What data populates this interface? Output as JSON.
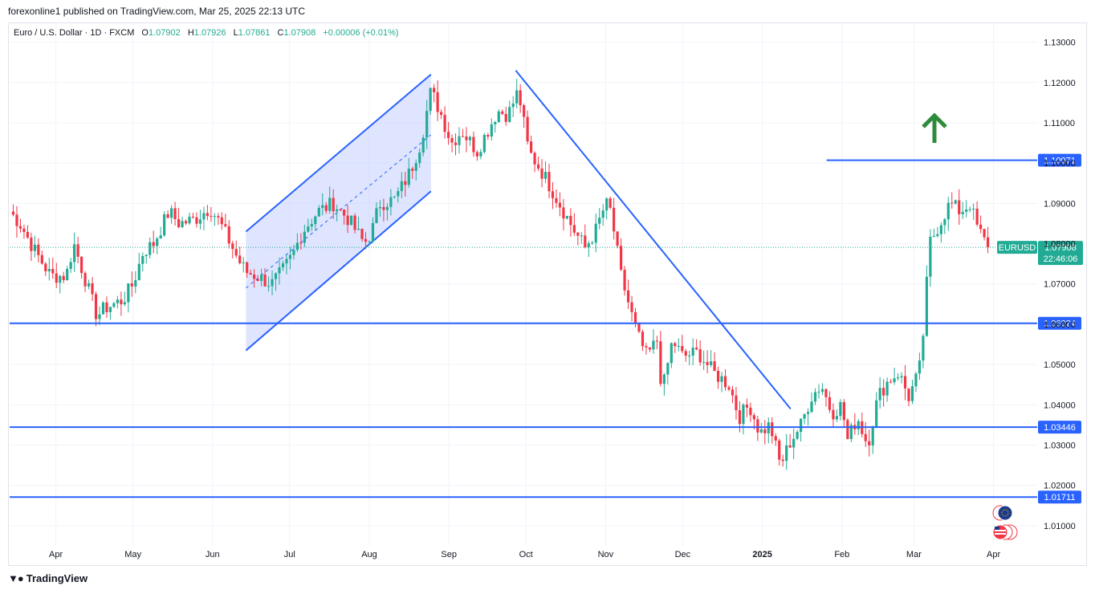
{
  "header": {
    "published": "forexonline1 published on TradingView.com, Mar 25, 2025 22:13 UTC"
  },
  "symbol": {
    "name": "Euro / U.S. Dollar · 1D · FXCM",
    "o_label": "O",
    "o": "1.07902",
    "h_label": "H",
    "h": "1.07926",
    "l_label": "L",
    "l": "1.07861",
    "c_label": "C",
    "c": "1.07908",
    "change": "+0.00006 (+0.01%)"
  },
  "footer": {
    "brand": "TradingView",
    "logo_icon": "tradingview-logo-icon"
  },
  "colors": {
    "up": "#22ab94",
    "down": "#f23645",
    "line": "#2962ff",
    "channel_fill": "#c5d0ff",
    "arrow": "#2e8b3a",
    "price_tag": "#22ab94"
  },
  "chart_data": {
    "type": "candlestick",
    "title": "",
    "ylim": [
      1.005,
      1.1345
    ],
    "y_ticks": [
      "1.13000",
      "1.12000",
      "1.11000",
      "1.10000",
      "1.09000",
      "1.08000",
      "1.07000",
      "1.06000",
      "1.05000",
      "1.04000",
      "1.03000",
      "1.02000",
      "1.01000"
    ],
    "x_ticks": [
      {
        "label": "Apr",
        "day": 18
      },
      {
        "label": "May",
        "day": 48
      },
      {
        "label": "Jun",
        "day": 79
      },
      {
        "label": "Jul",
        "day": 109
      },
      {
        "label": "Aug",
        "day": 140
      },
      {
        "label": "Sep",
        "day": 171
      },
      {
        "label": "Oct",
        "day": 201
      },
      {
        "label": "Nov",
        "day": 232
      },
      {
        "label": "Dec",
        "day": 262
      },
      {
        "label": "2025",
        "day": 293
      },
      {
        "label": "Feb",
        "day": 324
      },
      {
        "label": "Mar",
        "day": 352
      },
      {
        "label": "Apr",
        "day": 383
      }
    ],
    "x_range_days": [
      0,
      400
    ],
    "horizontal_levels": [
      {
        "value": 1.10071,
        "label": "1.10071",
        "start_day": 318
      },
      {
        "value": 1.06024,
        "label": "1.06024",
        "start_day": 0
      },
      {
        "value": 1.03446,
        "label": "1.03446",
        "start_day": 0
      },
      {
        "value": 1.01711,
        "label": "1.01711",
        "start_day": 0
      }
    ],
    "last_price": {
      "symbol": "EURUSD",
      "value": 1.07908,
      "label": "1.07908",
      "countdown": "22:46:06"
    },
    "channel": {
      "upper": [
        [
          92,
          1.083
        ],
        [
          164,
          1.122
        ]
      ],
      "lower": [
        [
          92,
          1.0535
        ],
        [
          164,
          1.093
        ]
      ],
      "mid": [
        [
          92,
          1.069
        ],
        [
          164,
          1.107
        ]
      ]
    },
    "trendline": [
      [
        197,
        1.123
      ],
      [
        304,
        1.039
      ]
    ],
    "arrow": {
      "day": 360,
      "price": 1.109,
      "direction": "up"
    },
    "swings": [
      [
        0,
        1.088
      ],
      [
        4,
        1.085
      ],
      [
        10,
        1.078
      ],
      [
        16,
        1.072
      ],
      [
        22,
        1.072
      ],
      [
        25,
        1.08
      ],
      [
        30,
        1.07
      ],
      [
        34,
        1.062
      ],
      [
        37,
        1.064
      ],
      [
        44,
        1.066
      ],
      [
        48,
        1.07
      ],
      [
        52,
        1.078
      ],
      [
        56,
        1.08
      ],
      [
        62,
        1.088
      ],
      [
        66,
        1.085
      ],
      [
        72,
        1.086
      ],
      [
        78,
        1.089
      ],
      [
        82,
        1.085
      ],
      [
        86,
        1.08
      ],
      [
        89,
        1.076
      ],
      [
        92,
        1.073
      ],
      [
        96,
        1.072
      ],
      [
        102,
        1.07
      ],
      [
        106,
        1.073
      ],
      [
        110,
        1.077
      ],
      [
        114,
        1.083
      ],
      [
        120,
        1.088
      ],
      [
        126,
        1.09
      ],
      [
        132,
        1.086
      ],
      [
        138,
        1.08
      ],
      [
        141,
        1.083
      ],
      [
        144,
        1.09
      ],
      [
        150,
        1.091
      ],
      [
        156,
        1.098
      ],
      [
        160,
        1.105
      ],
      [
        164,
        1.118
      ],
      [
        168,
        1.112
      ],
      [
        172,
        1.105
      ],
      [
        176,
        1.108
      ],
      [
        182,
        1.103
      ],
      [
        186,
        1.108
      ],
      [
        190,
        1.113
      ],
      [
        194,
        1.112
      ],
      [
        198,
        1.118
      ],
      [
        202,
        1.103
      ],
      [
        208,
        1.097
      ],
      [
        214,
        1.09
      ],
      [
        220,
        1.083
      ],
      [
        224,
        1.079
      ],
      [
        228,
        1.083
      ],
      [
        232,
        1.09
      ],
      [
        234,
        1.088
      ],
      [
        238,
        1.072
      ],
      [
        244,
        1.058
      ],
      [
        248,
        1.052
      ],
      [
        252,
        1.056
      ],
      [
        254,
        1.043
      ],
      [
        258,
        1.056
      ],
      [
        262,
        1.052
      ],
      [
        268,
        1.053
      ],
      [
        274,
        1.048
      ],
      [
        280,
        1.045
      ],
      [
        284,
        1.037
      ],
      [
        288,
        1.04
      ],
      [
        292,
        1.033
      ],
      [
        296,
        1.035
      ],
      [
        300,
        1.025
      ],
      [
        304,
        1.031
      ],
      [
        308,
        1.035
      ],
      [
        312,
        1.042
      ],
      [
        316,
        1.045
      ],
      [
        320,
        1.038
      ],
      [
        324,
        1.04
      ],
      [
        326,
        1.031
      ],
      [
        330,
        1.037
      ],
      [
        334,
        1.03
      ],
      [
        338,
        1.042
      ],
      [
        342,
        1.046
      ],
      [
        346,
        1.048
      ],
      [
        350,
        1.042
      ],
      [
        354,
        1.048
      ],
      [
        356,
        1.06
      ],
      [
        358,
        1.08
      ],
      [
        362,
        1.085
      ],
      [
        366,
        1.09
      ],
      [
        370,
        1.088
      ],
      [
        374,
        1.09
      ],
      [
        376,
        1.085
      ],
      [
        380,
        1.08
      ],
      [
        382,
        1.07908
      ]
    ]
  }
}
